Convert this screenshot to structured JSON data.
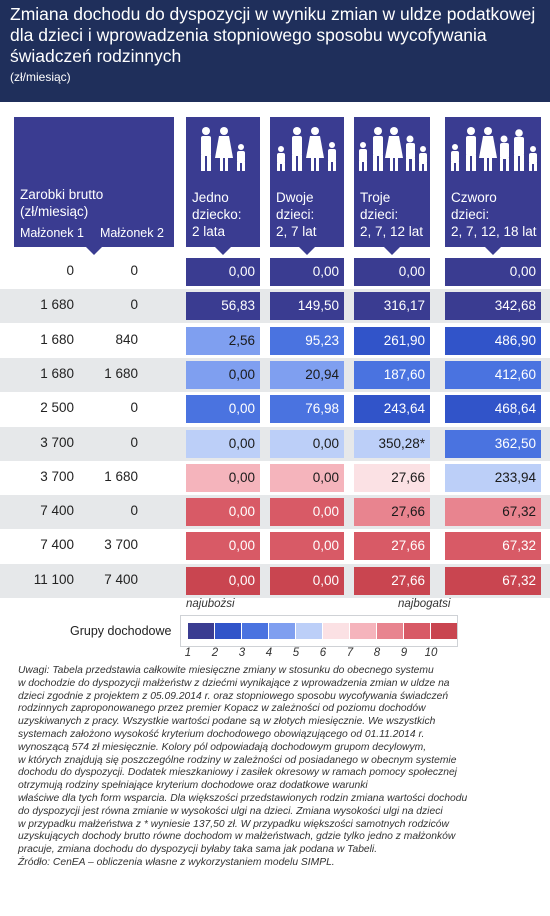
{
  "header": {
    "title": "Zmiana dochodu do dyspozycji w wyniku zmian w uldze podatkowej dla dzieci i wprowadzenia stopniowego sposobu wycofywania świadczeń rodzinnych",
    "unit": "(zł/miesiąc)"
  },
  "table_head": {
    "earnings_label_1": "Zarobki brutto",
    "earnings_label_2": "(zł/miesiąc)",
    "spouse1": "Małżonek 1",
    "spouse2": "Małżonek 2"
  },
  "columns": [
    {
      "line1": "Jedno",
      "line2": "dziecko:",
      "line3": "2 lata"
    },
    {
      "line1": "Dwoje",
      "line2": "dzieci:",
      "line3": "2, 7 lat"
    },
    {
      "line1": "Troje",
      "line2": "dzieci:",
      "line3": "2, 7, 12 lat"
    },
    {
      "line1": "Czworo",
      "line2": "dzieci:",
      "line3": "2, 7, 12, 18 lat"
    }
  ],
  "rows": [
    {
      "s1": "0",
      "s2": "0",
      "v": [
        "0,00",
        "0,00",
        "0,00",
        "0,00"
      ],
      "g": [
        1,
        1,
        1,
        1
      ]
    },
    {
      "s1": "1 680",
      "s2": "0",
      "v": [
        "56,83",
        "149,50",
        "316,17",
        "342,68"
      ],
      "g": [
        1,
        1,
        1,
        1
      ]
    },
    {
      "s1": "1 680",
      "s2": "840",
      "v": [
        "2,56",
        "95,23",
        "261,90",
        "486,90"
      ],
      "g": [
        4,
        3,
        2,
        2
      ]
    },
    {
      "s1": "1 680",
      "s2": "1 680",
      "v": [
        "0,00",
        "20,94",
        "187,60",
        "412,60"
      ],
      "g": [
        4,
        4,
        3,
        3
      ]
    },
    {
      "s1": "2 500",
      "s2": "0",
      "v": [
        "0,00",
        "76,98",
        "243,64",
        "468,64"
      ],
      "g": [
        3,
        3,
        2,
        2
      ]
    },
    {
      "s1": "3 700",
      "s2": "0",
      "v": [
        "0,00",
        "0,00",
        "350,28*",
        "362,50"
      ],
      "g": [
        5,
        5,
        5,
        3
      ]
    },
    {
      "s1": "3 700",
      "s2": "1 680",
      "v": [
        "0,00",
        "0,00",
        "27,66",
        "233,94"
      ],
      "g": [
        7,
        7,
        6,
        5
      ]
    },
    {
      "s1": "7 400",
      "s2": "0",
      "v": [
        "0,00",
        "0,00",
        "27,66",
        "67,32"
      ],
      "g": [
        9,
        9,
        8,
        8
      ]
    },
    {
      "s1": "7 400",
      "s2": "3 700",
      "v": [
        "0,00",
        "0,00",
        "27,66",
        "67,32"
      ],
      "g": [
        9,
        9,
        9,
        9
      ]
    },
    {
      "s1": "11 100",
      "s2": "7 400",
      "v": [
        "0,00",
        "0,00",
        "27,66",
        "67,32"
      ],
      "g": [
        10,
        10,
        10,
        10
      ]
    }
  ],
  "legend": {
    "label": "Grupy dochodowe",
    "low": "najubożsi",
    "high": "najbogatsi",
    "numbers": [
      "1",
      "2",
      "3",
      "4",
      "5",
      "6",
      "7",
      "8",
      "9",
      "10"
    ],
    "colors": [
      "#3a3c91",
      "#3154c9",
      "#4a73e0",
      "#7f9ff0",
      "#bccff8",
      "#fbe1e4",
      "#f5b4bc",
      "#e8848f",
      "#d85a66",
      "#c94550"
    ]
  },
  "notes": [
    "Uwagi: Tabela przedstawia całkowite miesięczne zmiany w stosunku do obecnego systemu",
    "w dochodzie do dyspozycji małżeństw z dziećmi wynikające z wprowadzenia zmian w uldze na",
    "dzieci zgodnie z projektem z 05.09.2014 r. oraz stopniowego sposobu wycofywania świadczeń",
    "rodzinnych zaproponowanego przez premier Kopacz w zależności od poziomu dochodów",
    "uzyskiwanych z pracy. Wszystkie wartości podane są w złotych miesięcznie. We wszystkich",
    "systemach założono wysokość kryterium dochodowego obowiązującego od 01.11.2014 r.",
    "wynoszącą 574 zł miesięcznie. Kolory pól odpowiadają dochodowym grupom decylowym,",
    "w których znajdują się poszczególne rodziny w zależności od posiadanego w obecnym systemie",
    "dochodu do dyspozycji. Dodatek mieszkaniowy i zasiłek okresowy w ramach pomocy społecznej",
    "otrzymują rodziny spełniające kryterium dochodowe oraz dodatkowe warunki",
    "właściwe dla tych form wsparcia. Dla większości przedstawionych rodzin zmiana wartości dochodu",
    "do dyspozycji jest równa zmianie w wysokości ulgi na dzieci. Zmiana wysokości ulgi na dzieci",
    "w przypadku małżeństwa z * wyniesie 137,50 zł. W przypadku większości samotnych rodziców",
    "uzyskujących dochody brutto równe dochodom w małżeństwach, gdzie tylko jedno z małżonków",
    "pracuje, zmiana dochodu do dyspozycji byłaby taka sama jak podana w Tabeli.",
    "Źródło: CenEA – obliczenia własne z wykorzystaniem modelu SIMPL."
  ],
  "chart_data": {
    "type": "table",
    "title": "Zmiana dochodu do dyspozycji w wyniku zmian w uldze podatkowej dla dzieci i wprowadzenia stopniowego sposobu wycofywania świadczeń rodzinnych",
    "unit": "(zł/miesiąc)",
    "columns": [
      "Małżonek 1",
      "Małżonek 2",
      "Jedno dziecko: 2 lata",
      "Dwoje dzieci: 2, 7 lat",
      "Troje dzieci: 2, 7, 12 lat",
      "Czworo dzieci: 2, 7, 12, 18 lat"
    ],
    "rows": [
      [
        "0",
        "0",
        0.0,
        0.0,
        0.0,
        0.0
      ],
      [
        "1 680",
        "0",
        56.83,
        149.5,
        316.17,
        342.68
      ],
      [
        "1 680",
        "840",
        2.56,
        95.23,
        261.9,
        486.9
      ],
      [
        "1 680",
        "1 680",
        0.0,
        20.94,
        187.6,
        412.6
      ],
      [
        "2 500",
        "0",
        0.0,
        76.98,
        243.64,
        468.64
      ],
      [
        "3 700",
        "0",
        0.0,
        0.0,
        350.28,
        362.5
      ],
      [
        "3 700",
        "1 680",
        0.0,
        0.0,
        27.66,
        233.94
      ],
      [
        "7 400",
        "0",
        0.0,
        0.0,
        27.66,
        67.32
      ],
      [
        "7 400",
        "3 700",
        0.0,
        0.0,
        27.66,
        67.32
      ],
      [
        "11 100",
        "7 400",
        0.0,
        0.0,
        27.66,
        67.32
      ]
    ]
  }
}
